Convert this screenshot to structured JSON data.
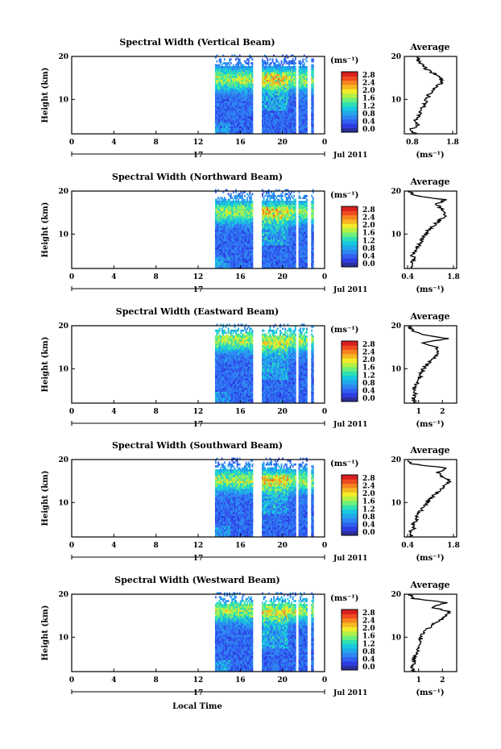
{
  "chart_data": {
    "type": "heatmap",
    "x_axis": {
      "ticks": [
        "0",
        "4",
        "8",
        "12",
        "16",
        "20",
        "0"
      ],
      "day_label": "17",
      "date_label": "Jul 2011",
      "xlabel": "Local Time"
    },
    "y_axis": {
      "ylabel": "Height (km)",
      "ticks": [
        "10",
        "20"
      ],
      "ylim": [
        2,
        20
      ]
    },
    "colorbar": {
      "unit_label": "(ms⁻¹)",
      "ticks": [
        "2.8",
        "2.4",
        "2.0",
        "1.6",
        "1.2",
        "0.8",
        "0.4",
        "0.0"
      ],
      "colors": [
        "#2b2f9b",
        "#2d3ce0",
        "#2f60f0",
        "#2e86f2",
        "#21a8ea",
        "#17c8e0",
        "#2fe0b4",
        "#6cf07a",
        "#b5f046",
        "#f2ec2a",
        "#f6b820",
        "#f6841e",
        "#f04a20",
        "#d81e1e"
      ]
    },
    "data_gaps_hours": [
      [
        0,
        13.6
      ],
      [
        17.2,
        18.0
      ],
      [
        21.3,
        21.55
      ],
      [
        22.4,
        22.75
      ],
      [
        23.0,
        24.0
      ]
    ],
    "panels": [
      {
        "title": "Spectral Width (Vertical Beam)",
        "avg_title": "Average",
        "avg_xticks": [
          "0.8",
          "1.8"
        ],
        "avg_xlim": [
          0.6,
          1.9
        ],
        "avg_xlabel": "(ms⁻¹)",
        "peak_height_km": 14.5,
        "profile": {
          "height_km": [
            2,
            3,
            4,
            5,
            6,
            7,
            8,
            9,
            10,
            11,
            12,
            13,
            14,
            15,
            16,
            17,
            18,
            19,
            20
          ],
          "width_ms": [
            0.85,
            0.75,
            0.95,
            0.85,
            0.95,
            1.0,
            1.05,
            1.1,
            1.15,
            1.2,
            1.3,
            1.4,
            1.55,
            1.5,
            1.35,
            1.15,
            1.05,
            0.95,
            0.9
          ]
        }
      },
      {
        "title": "Spectral Width (Northward Beam)",
        "avg_title": "Average",
        "avg_xticks": [
          "0.4",
          "1.8"
        ],
        "avg_xlim": [
          0.3,
          1.9
        ],
        "avg_xlabel": "(ms⁻¹)",
        "peak_height_km": 15.0,
        "profile": {
          "height_km": [
            2,
            3,
            4,
            5,
            6,
            7,
            8,
            9,
            10,
            11,
            12,
            13,
            14,
            15,
            16,
            17,
            18,
            19,
            20
          ],
          "width_ms": [
            0.55,
            0.5,
            0.6,
            0.55,
            0.65,
            0.7,
            0.8,
            0.85,
            0.95,
            1.05,
            1.2,
            1.35,
            1.5,
            1.6,
            1.4,
            1.3,
            1.55,
            0.6,
            0.45
          ]
        }
      },
      {
        "title": "Spectral Width (Eastward Beam)",
        "avg_title": "Average",
        "avg_xticks": [
          "1",
          "2"
        ],
        "avg_xlim": [
          0.4,
          2.6
        ],
        "avg_xlabel": "(ms⁻¹)",
        "peak_height_km": 16.5,
        "profile": {
          "height_km": [
            2,
            3,
            4,
            5,
            6,
            7,
            8,
            9,
            10,
            11,
            12,
            13,
            14,
            15,
            16,
            17,
            18,
            19,
            20
          ],
          "width_ms": [
            0.9,
            0.75,
            0.85,
            0.8,
            0.9,
            0.95,
            1.05,
            1.1,
            1.2,
            1.35,
            1.55,
            1.7,
            1.85,
            1.75,
            1.2,
            2.2,
            1.1,
            0.7,
            0.6
          ]
        }
      },
      {
        "title": "Spectral Width (Southward Beam)",
        "avg_title": "Average",
        "avg_xticks": [
          "0.4",
          "1.8"
        ],
        "avg_xlim": [
          0.3,
          1.9
        ],
        "avg_xlabel": "(ms⁻¹)",
        "peak_height_km": 15.0,
        "profile": {
          "height_km": [
            2,
            3,
            4,
            5,
            6,
            7,
            8,
            9,
            10,
            11,
            12,
            13,
            14,
            15,
            16,
            17,
            18,
            19,
            20
          ],
          "width_ms": [
            0.5,
            0.45,
            0.6,
            0.55,
            0.7,
            0.65,
            0.8,
            0.9,
            1.0,
            1.1,
            1.25,
            1.4,
            1.55,
            1.7,
            1.45,
            1.3,
            1.6,
            0.5,
            0.4
          ]
        }
      },
      {
        "title": "Spectral Width (Westward Beam)",
        "avg_title": "Average",
        "avg_xticks": [
          "1",
          "2"
        ],
        "avg_xlim": [
          0.4,
          2.6
        ],
        "avg_xlabel": "(ms⁻¹)",
        "peak_height_km": 16.0,
        "profile": {
          "height_km": [
            2,
            3,
            4,
            5,
            6,
            7,
            8,
            9,
            10,
            11,
            12,
            13,
            14,
            15,
            16,
            17,
            18,
            19,
            20
          ],
          "width_ms": [
            0.8,
            0.7,
            0.85,
            0.8,
            0.9,
            0.95,
            1.0,
            1.05,
            1.1,
            1.2,
            1.4,
            1.6,
            1.9,
            2.1,
            2.3,
            1.5,
            2.2,
            0.8,
            0.6
          ]
        }
      }
    ]
  }
}
